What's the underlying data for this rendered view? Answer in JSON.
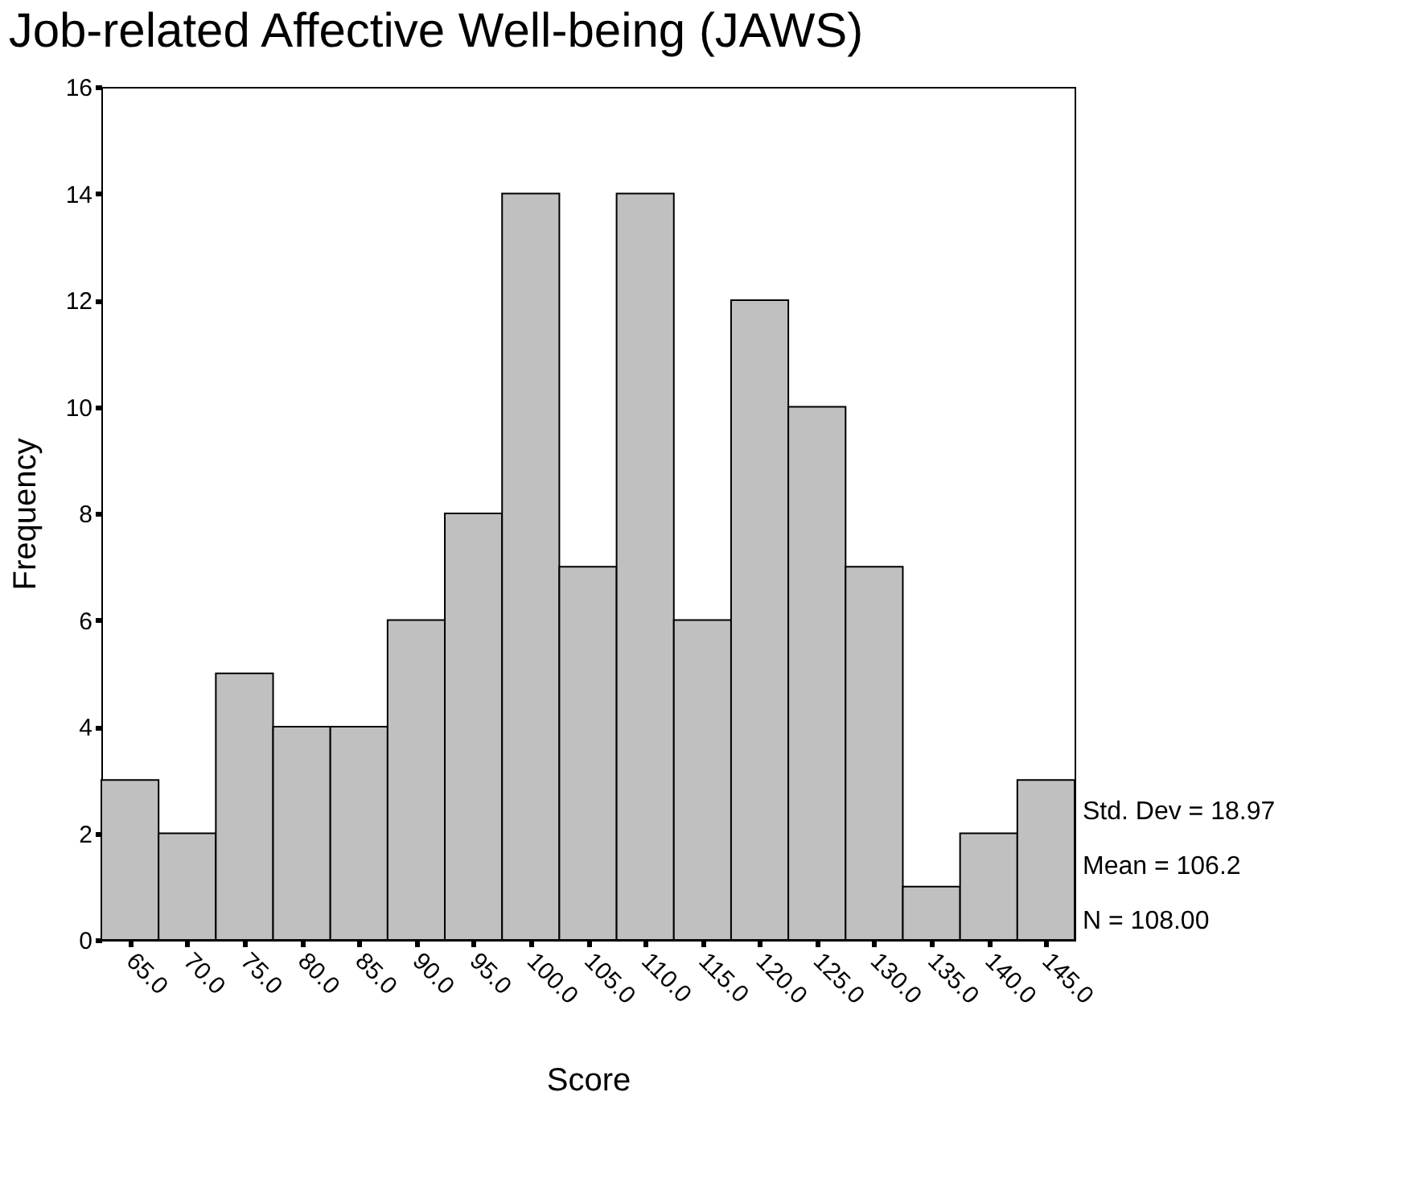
{
  "chart_data": {
    "type": "histogram",
    "title": "Job-related Affective Well-being (JAWS)",
    "xlabel": "Score",
    "ylabel": "Frequency",
    "bins": [
      62.5,
      67.5,
      72.5,
      77.5,
      82.5,
      87.5,
      92.5,
      97.5,
      102.5,
      107.5,
      112.5,
      117.5,
      122.5,
      127.5,
      132.5,
      137.5,
      142.5,
      147.5
    ],
    "values": [
      3,
      2,
      5,
      4,
      4,
      6,
      8,
      14,
      7,
      14,
      6,
      12,
      10,
      7,
      1,
      2,
      3
    ],
    "color": "#c0c0c0",
    "xlim": [
      62.5,
      147.5
    ],
    "xticks": [
      {
        "value": 65,
        "label": "65.0"
      },
      {
        "value": 70,
        "label": "70.0"
      },
      {
        "value": 75,
        "label": "75.0"
      },
      {
        "value": 80,
        "label": "80.0"
      },
      {
        "value": 85,
        "label": "85.0"
      },
      {
        "value": 90,
        "label": "90.0"
      },
      {
        "value": 95,
        "label": "95.0"
      },
      {
        "value": 100,
        "label": "100.0"
      },
      {
        "value": 105,
        "label": "105.0"
      },
      {
        "value": 110,
        "label": "110.0"
      },
      {
        "value": 115,
        "label": "115.0"
      },
      {
        "value": 120,
        "label": "120.0"
      },
      {
        "value": 125,
        "label": "125.0"
      },
      {
        "value": 130,
        "label": "130.0"
      },
      {
        "value": 135,
        "label": "135.0"
      },
      {
        "value": 140,
        "label": "140.0"
      },
      {
        "value": 145,
        "label": "145.0"
      }
    ],
    "ylim": [
      0,
      16
    ],
    "yticks": [
      0,
      2,
      4,
      6,
      8,
      10,
      12,
      14,
      16
    ],
    "grid": false,
    "annotations": [
      "Std. Dev = 18.97",
      "Mean = 106.2",
      "N = 108.00"
    ]
  }
}
